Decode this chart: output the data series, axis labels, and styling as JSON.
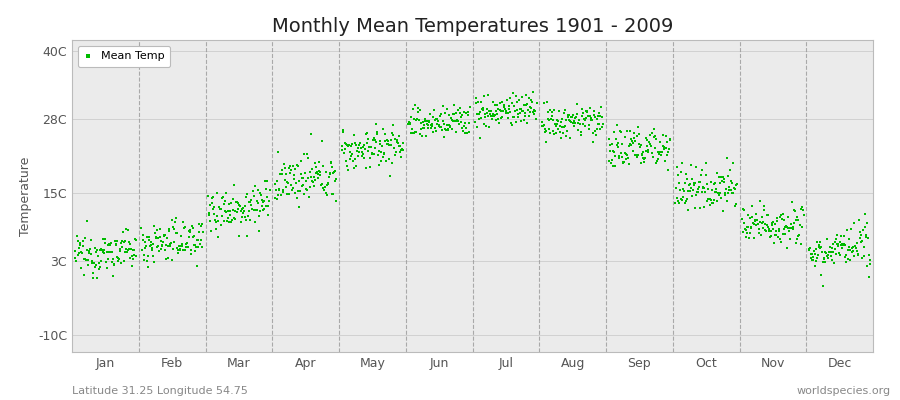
{
  "title": "Monthly Mean Temperatures 1901 - 2009",
  "ylabel": "Temperature",
  "yticks": [
    -10,
    3,
    15,
    28,
    40
  ],
  "ytick_labels": [
    "-10C",
    "3C",
    "15C",
    "28C",
    "40C"
  ],
  "ylim": [
    -13,
    42
  ],
  "months": [
    "Jan",
    "Feb",
    "Mar",
    "Apr",
    "May",
    "Jun",
    "Jul",
    "Aug",
    "Sep",
    "Oct",
    "Nov",
    "Dec"
  ],
  "dot_color": "#00bb00",
  "dot_size": 3,
  "background_color": "#ebebeb",
  "outer_background": "#ffffff",
  "legend_label": "Mean Temp",
  "subtitle_left": "Latitude 31.25 Longitude 54.75",
  "subtitle_right": "worldspecies.org",
  "n_years": 109,
  "monthly_means": [
    4.5,
    6.5,
    12.5,
    17.5,
    23.0,
    27.5,
    29.5,
    27.5,
    23.0,
    16.0,
    9.5,
    5.0
  ],
  "monthly_stds": [
    1.8,
    1.8,
    2.0,
    2.0,
    1.8,
    1.5,
    1.5,
    1.5,
    2.0,
    2.0,
    1.8,
    1.8
  ],
  "monthly_trend": [
    0.01,
    0.01,
    0.01,
    0.01,
    0.01,
    0.01,
    0.01,
    0.01,
    0.01,
    0.01,
    0.01,
    0.01
  ],
  "grid_color": "#cccccc",
  "spine_color": "#bbbbbb",
  "vline_color": "#999999",
  "tick_color": "#555555",
  "title_fontsize": 14,
  "label_fontsize": 9,
  "subtitle_fontsize": 8
}
